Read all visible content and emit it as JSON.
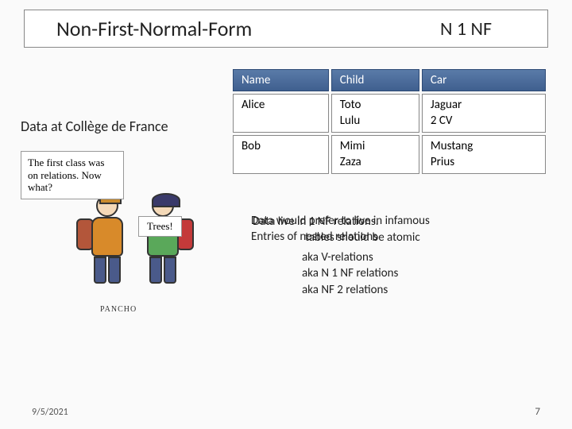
{
  "title": {
    "left": "Non-First-Normal-Form",
    "right": "N 1 NF"
  },
  "subtitle": "Data at Collège de France",
  "table": {
    "headers": [
      "Name",
      "Child",
      "Car"
    ],
    "rows": [
      {
        "name": "Alice",
        "child": "Toto\nLulu",
        "car": "Jaguar\n2 CV"
      },
      {
        "name": "Bob",
        "child": "Mimi\nZaza",
        "car": "Mustang\nPrius"
      }
    ],
    "header_bg_top": "#5a7ba8",
    "header_bg_bottom": "#3f5f8f",
    "header_text_color": "#ffffff",
    "cell_bg": "#ffffff",
    "cell_border": "#888888"
  },
  "cartoon": {
    "bubble1": "The first class was on relations. Now what?",
    "bubble2": "Trees!",
    "signature": "PANCHO"
  },
  "body": {
    "line1": "Data would prefer to live in infamous",
    "line1b": "Data live in 1 NF relations.",
    "line2a": "Entries of",
    "line2b": "nested relations",
    "line2c": "tables should be atomic",
    "aka": [
      "aka V-relations",
      "aka N 1 NF relations",
      "aka NF 2 relations"
    ]
  },
  "footer": {
    "date": "9/5/2021",
    "page": "7"
  }
}
